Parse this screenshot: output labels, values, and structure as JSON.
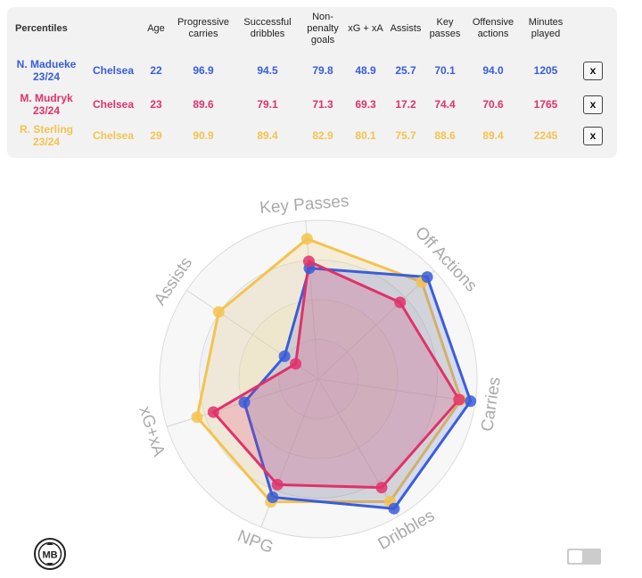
{
  "table": {
    "header_label": "Percentiles",
    "columns": [
      "Age",
      "Progressive carries",
      "Successful dribbles",
      "Non-penalty goals",
      "xG + xA",
      "Assists",
      "Key passes",
      "Offensive actions",
      "Minutes played"
    ],
    "close_label": "x",
    "rows": [
      {
        "player": "N. Madueke 23/24",
        "team": "Chelsea",
        "color": "#3a5ddb",
        "values": [
          "22",
          "96.9",
          "94.5",
          "79.8",
          "48.9",
          "25.7",
          "70.1",
          "94.0",
          "1205"
        ]
      },
      {
        "player": "M. Mudryk 23/24",
        "team": "Chelsea",
        "color": "#e0326a",
        "values": [
          "23",
          "89.6",
          "79.1",
          "71.3",
          "69.3",
          "17.2",
          "74.4",
          "70.6",
          "1765"
        ]
      },
      {
        "player": "R. Sterling 23/24",
        "team": "Chelsea",
        "color": "#f4c34f",
        "values": [
          "29",
          "90.9",
          "89.4",
          "82.9",
          "80.1",
          "75.7",
          "88.6",
          "89.4",
          "2245"
        ]
      }
    ]
  },
  "chart_data": {
    "type": "radar",
    "axes": [
      "Key Passes",
      "Off Actions",
      "Carries",
      "Dribbles",
      "NPG",
      "xG+xA",
      "Assists"
    ],
    "range": [
      0,
      100
    ],
    "series": [
      {
        "name": "N. Madueke 23/24",
        "color": "#3a5ddb",
        "values": [
          70.1,
          94.0,
          96.9,
          94.5,
          79.8,
          48.9,
          25.7
        ]
      },
      {
        "name": "M. Mudryk 23/24",
        "color": "#e0326a",
        "values": [
          74.4,
          70.6,
          89.6,
          79.1,
          71.3,
          69.3,
          17.2
        ]
      },
      {
        "name": "R. Sterling 23/24",
        "color": "#f4c34f",
        "values": [
          88.6,
          89.4,
          90.9,
          89.4,
          82.9,
          80.1,
          75.7
        ]
      }
    ]
  },
  "logo": {
    "text": "MB"
  },
  "icons": {
    "toggle": "toggle-switch-icon",
    "logo": "mb-logo-icon"
  }
}
